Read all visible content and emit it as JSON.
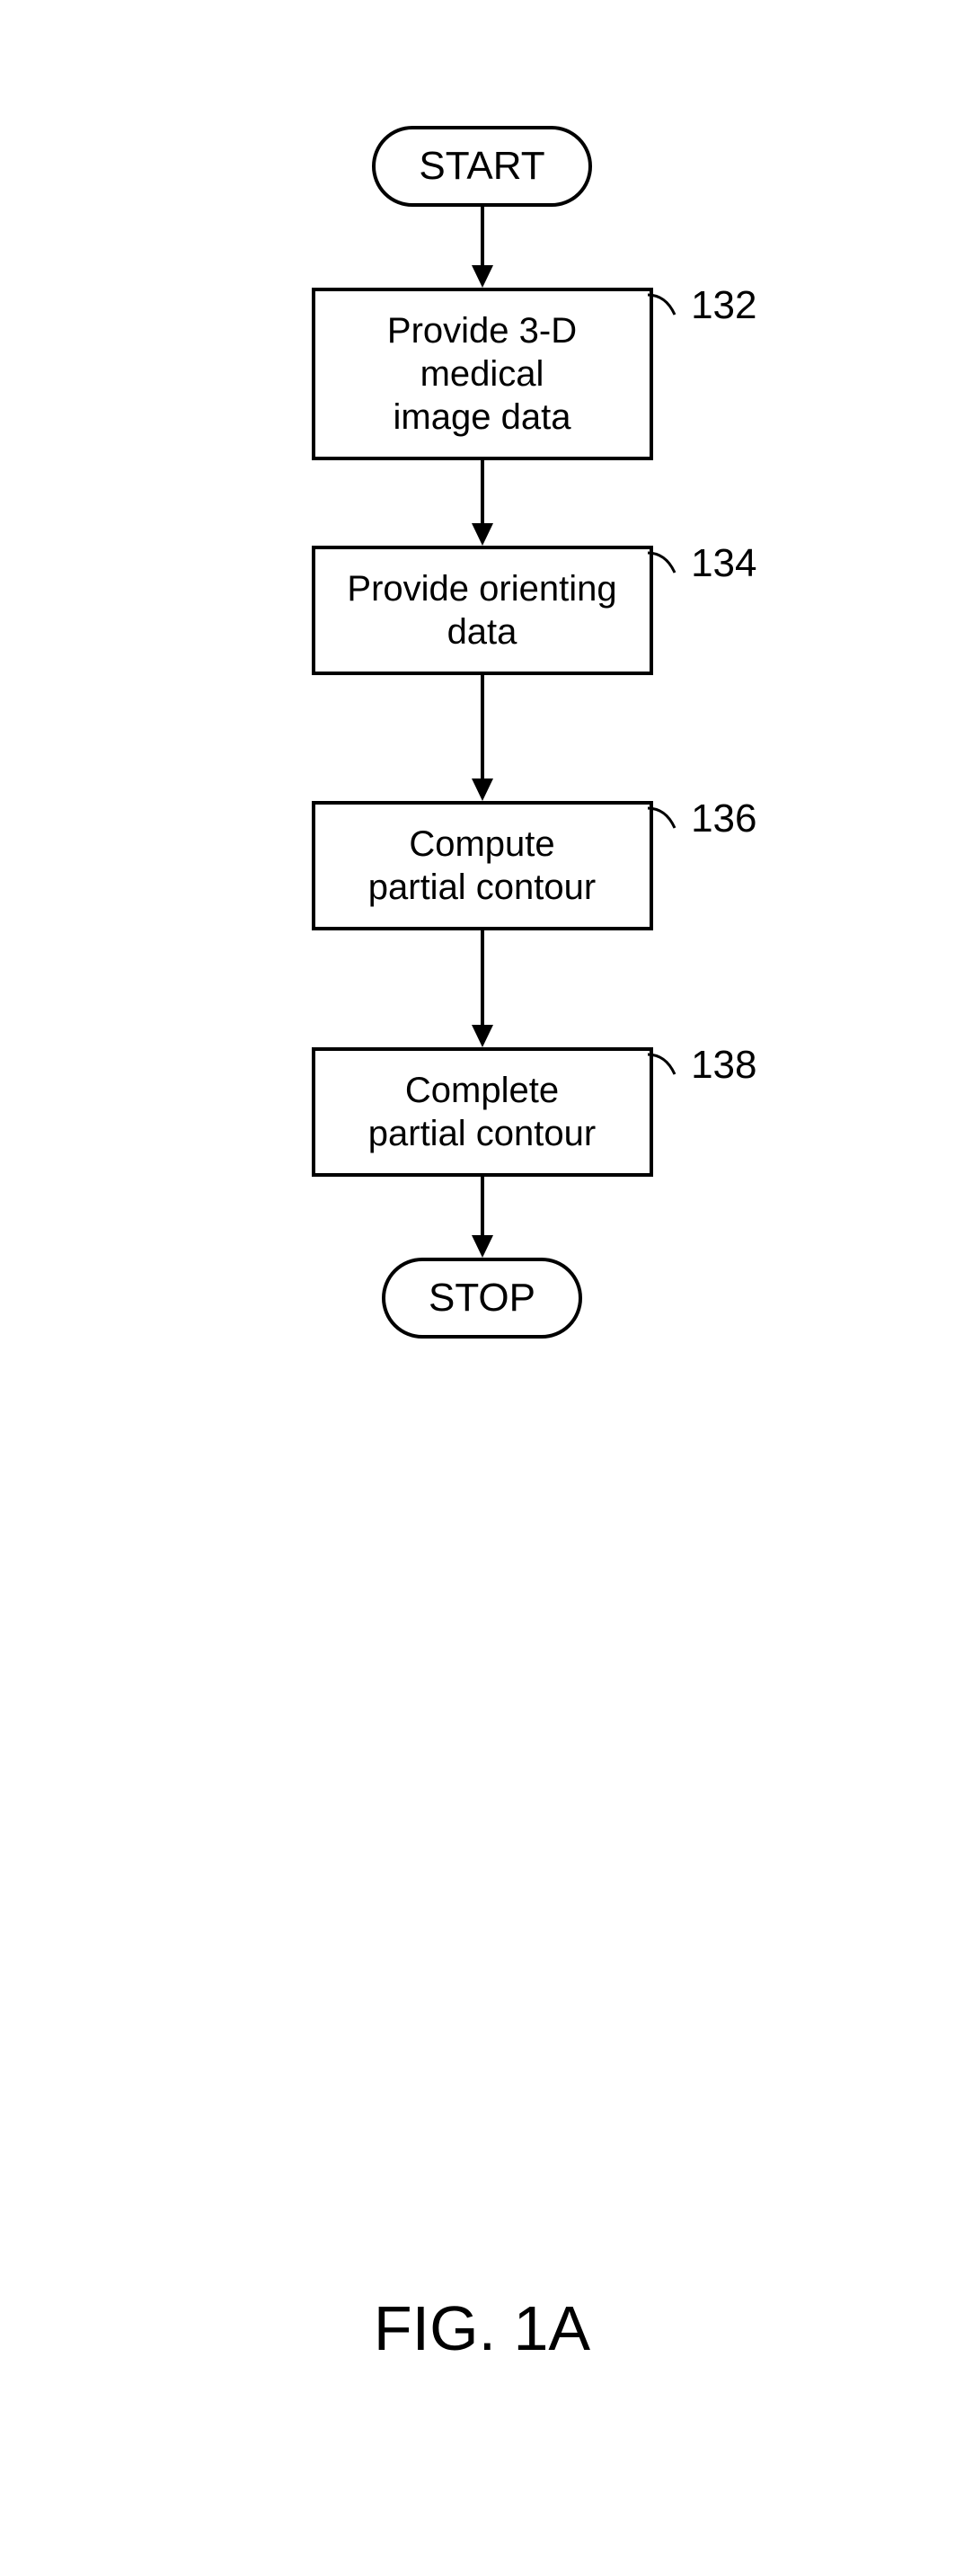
{
  "flowchart": {
    "start": "START",
    "stop": "STOP",
    "steps": [
      {
        "text": "Provide 3-D\nmedical\nimage data",
        "label": "132"
      },
      {
        "text": "Provide orienting\ndata",
        "label": "134"
      },
      {
        "text": "Compute\npartial contour",
        "label": "136"
      },
      {
        "text": "Complete\npartial contour",
        "label": "138"
      }
    ],
    "arrows": {
      "lengths": [
        90,
        95,
        140,
        130,
        90
      ]
    }
  },
  "figure_label": "FIG. 1A",
  "colors": {
    "stroke": "#000000",
    "background": "#ffffff",
    "text": "#000000"
  },
  "stroke_width": 4,
  "fonts": {
    "box_size": 40,
    "terminal_size": 44,
    "label_size": 44,
    "figure_size": 70
  }
}
